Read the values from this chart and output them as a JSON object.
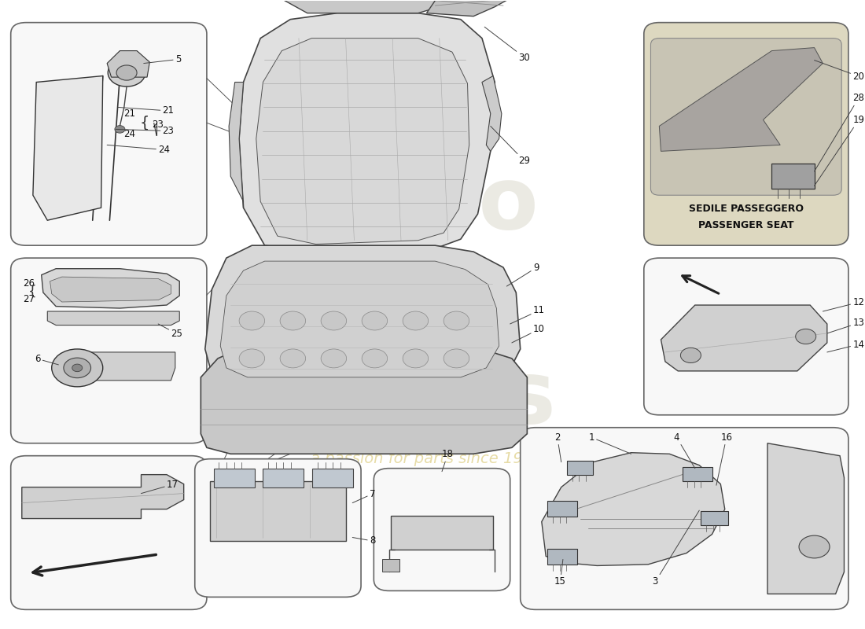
{
  "bg": "#ffffff",
  "box_fill": "#f8f8f8",
  "box_ec": "#666666",
  "part_fill": "#e8e8e8",
  "part_ec": "#333333",
  "line_color": "#444444",
  "text_color": "#111111",
  "wm_color1": "#c8c4b0",
  "wm_color2": "#d4c060",
  "seat_it": "SEDILE PASSEGGERO",
  "seat_en": "PASSENGER SEAT",
  "top_right_fill": "#ddd8c0",
  "boxes": {
    "tl": [
      0.012,
      0.61,
      0.23,
      0.355
    ],
    "ml": [
      0.012,
      0.295,
      0.23,
      0.295
    ],
    "bl": [
      0.012,
      0.03,
      0.23,
      0.245
    ],
    "tr": [
      0.755,
      0.61,
      0.24,
      0.355
    ],
    "mr": [
      0.755,
      0.34,
      0.24,
      0.25
    ],
    "br": [
      0.61,
      0.03,
      0.385,
      0.29
    ],
    "bc1": [
      0.228,
      0.05,
      0.195,
      0.22
    ],
    "bc2": [
      0.438,
      0.06,
      0.16,
      0.195
    ]
  }
}
